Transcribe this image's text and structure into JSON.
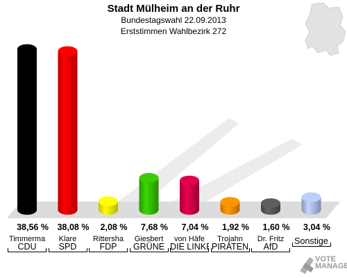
{
  "chart_data": {
    "type": "bar",
    "title": "Stadt Mülheim an der Ruhr",
    "subtitle": [
      "Bundestagswahl 22.09.2013",
      "Erststimmen Wahlbezirk 272"
    ],
    "categories": [
      "CDU",
      "SPD",
      "FDP",
      "GRÜNE",
      "DIE LINKE",
      "PIRATEN",
      "AfD",
      "Sonstige"
    ],
    "candidates": [
      "Timmerma",
      "Klare",
      "Rittersha",
      "Giesbert",
      "von Häfe",
      "Trojahn",
      "Dr. Fritz",
      ""
    ],
    "values": [
      38.56,
      38.08,
      2.08,
      7.68,
      7.04,
      1.92,
      1.6,
      3.04
    ],
    "value_labels": [
      "38,56 %",
      "38,08 %",
      "2,08 %",
      "7,68 %",
      "7,04 %",
      "1,92 %",
      "1,60 %",
      "3,04 %"
    ],
    "colors": [
      "#000000",
      "#ee0000",
      "#ffee00",
      "#33bb00",
      "#cc0044",
      "#ff8800",
      "#555555",
      "#aabbee"
    ],
    "ylim": [
      0,
      40
    ],
    "grid": false,
    "legend": "none"
  },
  "watermark": [
    "VOTE",
    "MANAGER"
  ]
}
